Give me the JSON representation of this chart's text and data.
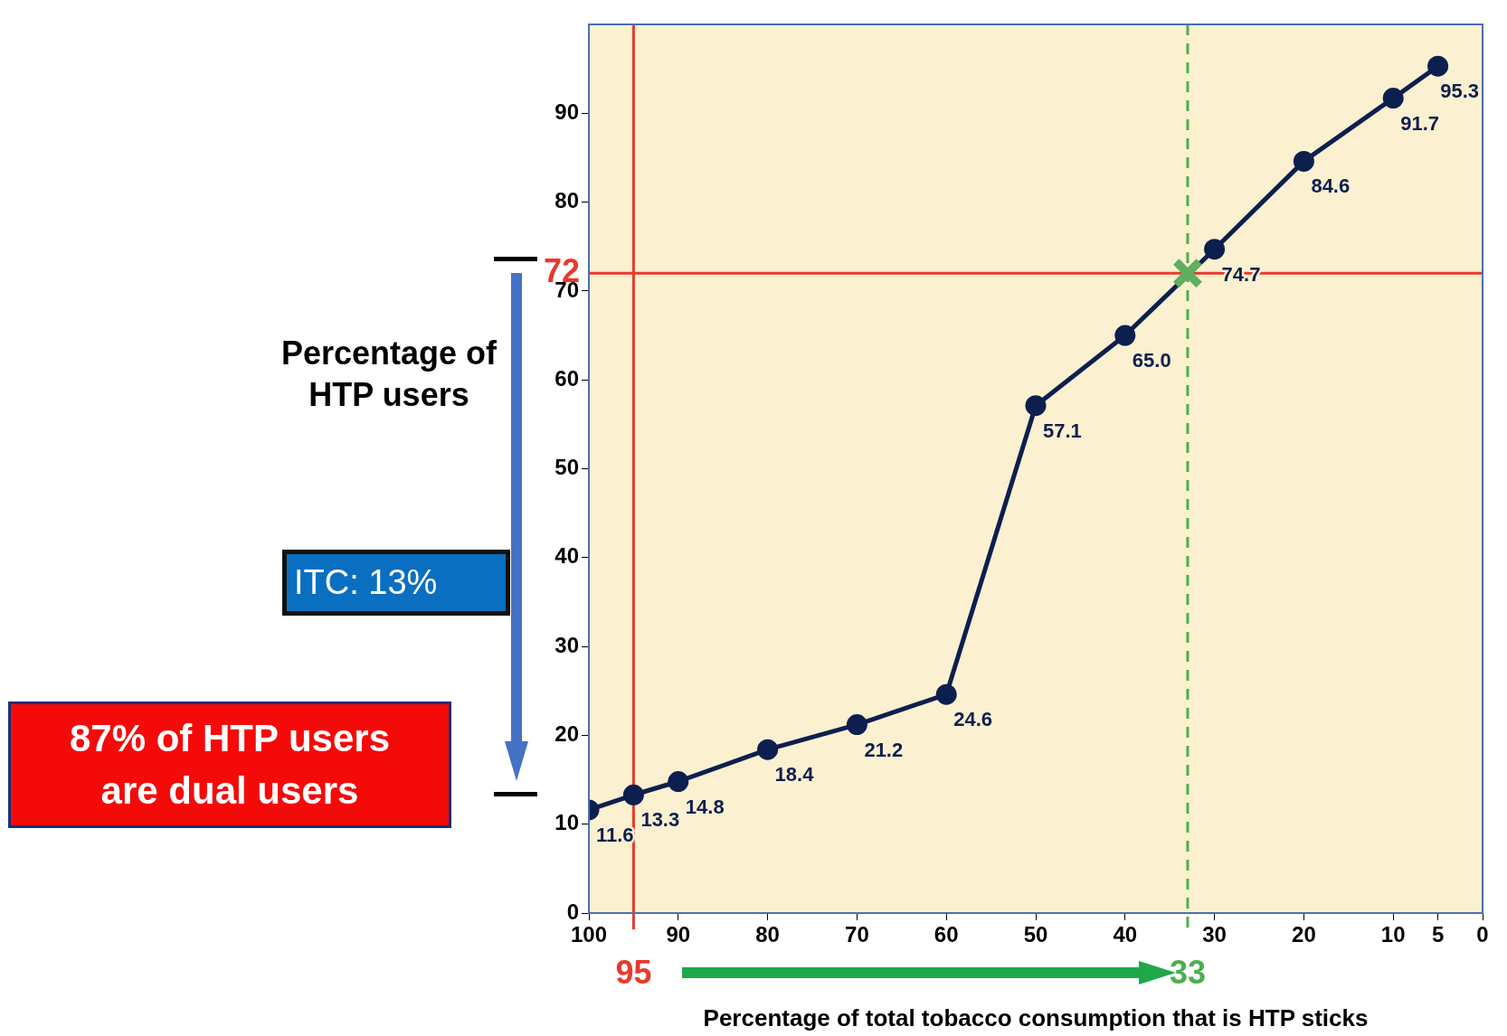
{
  "chart_data": {
    "type": "line",
    "xlabel": "Percentage of total tobacco consumption that is HTP sticks",
    "ylabel": "Percentage of HTP users",
    "xlim": [
      100,
      0
    ],
    "xticks": [
      100,
      90,
      80,
      70,
      60,
      50,
      40,
      30,
      20,
      10,
      5,
      0
    ],
    "ylim": [
      0,
      100
    ],
    "yticks": [
      0,
      10,
      20,
      30,
      40,
      50,
      60,
      70,
      80,
      90
    ],
    "grid": false,
    "legend": false,
    "marker": "circle",
    "series": [
      {
        "color": "#0d1f4f",
        "x": [
          100,
          95,
          90,
          80,
          70,
          60,
          50,
          40,
          30,
          20,
          10,
          5
        ],
        "values": [
          11.6,
          13.3,
          14.8,
          18.4,
          21.2,
          24.6,
          57.1,
          65.0,
          74.7,
          84.6,
          91.7,
          95.3
        ],
        "value_labels": [
          "11.6",
          "13.3",
          "14.8",
          "18.4",
          "21.2",
          "24.6",
          "57.1",
          "65.0",
          "74.7",
          "84.6",
          "91.7",
          "95.3"
        ]
      },
      {
        "type": "scatter",
        "marker": "cross",
        "color": "#5faf5f",
        "x": [
          33
        ],
        "values": [
          72
        ]
      }
    ],
    "ref_lines": [
      {
        "axis": "x",
        "value": 95,
        "label": "95",
        "color": "#e8392c",
        "line_style": "solid"
      },
      {
        "axis": "y",
        "value": 72,
        "label": "72",
        "color": "#e8392c",
        "line_style": "solid"
      },
      {
        "axis": "x",
        "value": 33,
        "label": "33",
        "color": "#4caf50",
        "line_style": "dashed"
      }
    ],
    "annotations": [
      "ITC:  13%",
      "87% of HTP users are dual users"
    ]
  }
}
